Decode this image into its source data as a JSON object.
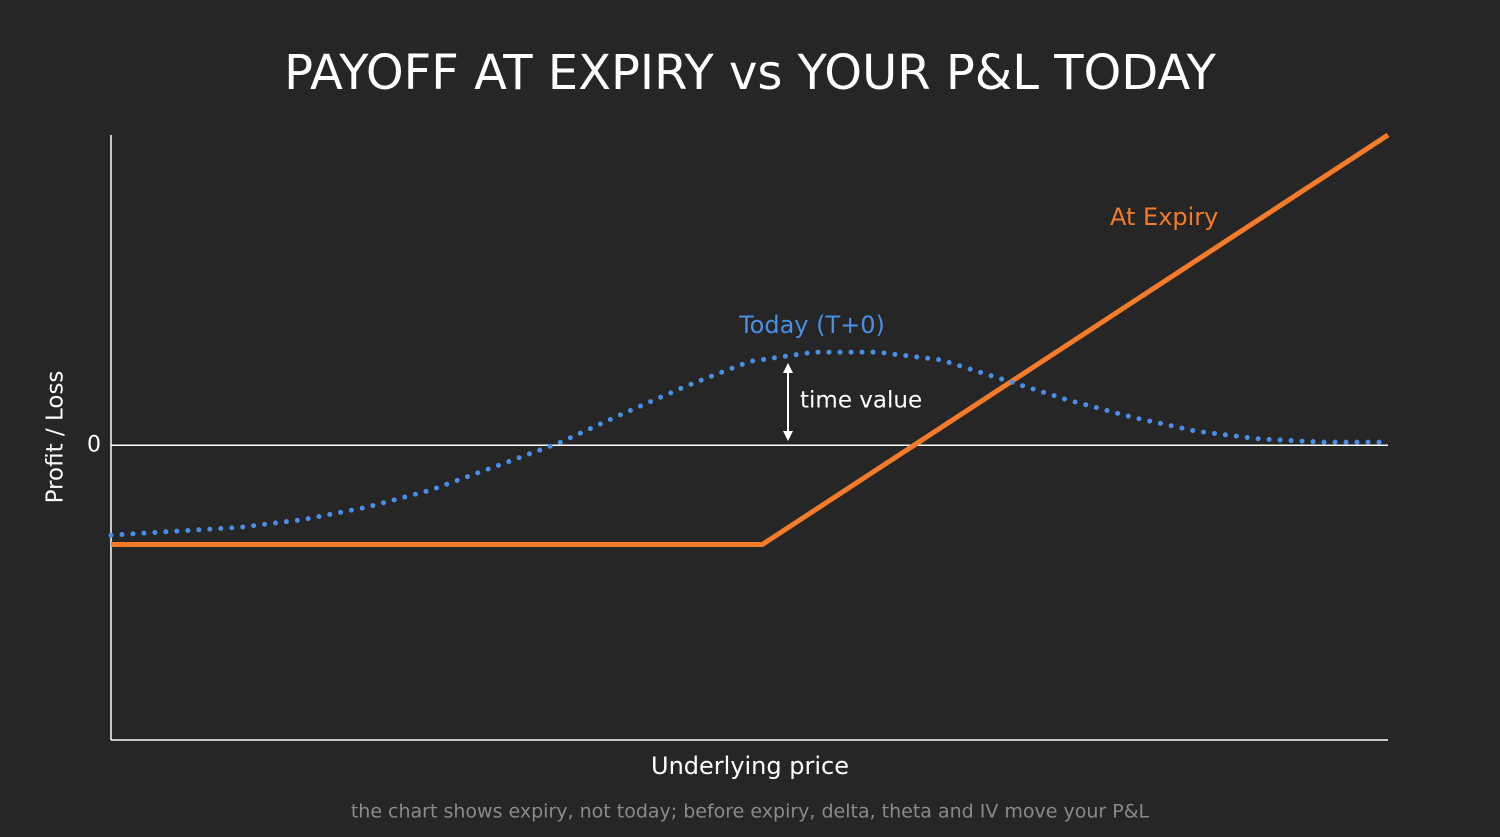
{
  "chart_data": {
    "type": "line",
    "title": "PAYOFF AT EXPIRY vs YOUR P&L TODAY",
    "x_label": "Underlying price",
    "y_label": "Profit / Loss",
    "annotation": "time value",
    "footnote": "the chart shows expiry, not today; before expiry, delta, theta and IV move your P&L",
    "xlim": [
      0,
      100
    ],
    "ylim": [
      -9.5,
      10
    ],
    "yticks": [
      0
    ],
    "grid": true,
    "series": [
      {
        "name": "At Expiry",
        "color": "#f47b2a",
        "linestyle": "solid",
        "x": [
          0,
          51,
          100
        ],
        "values": [
          -3.2,
          -3.2,
          10
        ]
      },
      {
        "name": "Today (T+0)",
        "color": "#4a8fe7",
        "linestyle": "dotted",
        "x": [
          0,
          5,
          10,
          15,
          20,
          25,
          30,
          35,
          40,
          45,
          50,
          55,
          60,
          65,
          70,
          75,
          80,
          85,
          90,
          95,
          100
        ],
        "values": [
          -2.9,
          -2.77,
          -2.65,
          -2.4,
          -2.0,
          -1.45,
          -0.7,
          0.06,
          1.0,
          1.9,
          2.7,
          3.0,
          3.0,
          2.75,
          2.1,
          1.45,
          0.9,
          0.45,
          0.2,
          0.1,
          0.1
        ]
      }
    ]
  }
}
